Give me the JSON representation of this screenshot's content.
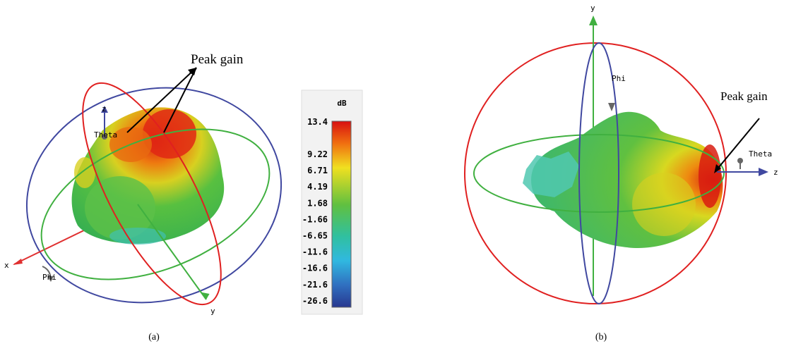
{
  "panel_a": {
    "caption": "(a)",
    "annotation": "Peak gain",
    "axis_labels": {
      "x": "x",
      "y": "y",
      "z": "z"
    },
    "angle_labels": {
      "theta": "Theta",
      "phi": "Phi"
    }
  },
  "colorbar": {
    "unit": "dB",
    "labels": [
      "13.4",
      "9.22",
      "6.71",
      "4.19",
      "1.68",
      "-1.66",
      "-6.65",
      "-11.6",
      "-16.6",
      "-21.6",
      "-26.6"
    ]
  },
  "panel_b": {
    "caption": "(b)",
    "annotation": "Peak gain",
    "axis_labels": {
      "y": "y",
      "z": "z"
    },
    "angle_labels": {
      "theta": "Theta",
      "phi": "Phi"
    }
  }
}
